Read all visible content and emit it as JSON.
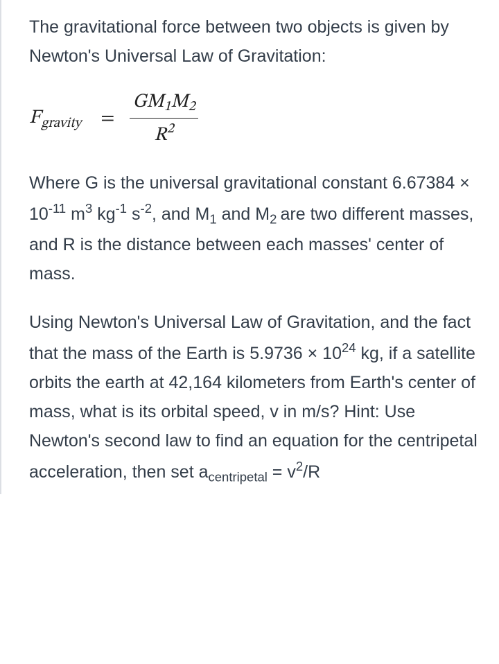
{
  "text_color": "#333d49",
  "background_color": "#ffffff",
  "border_color": "#dcdfe4",
  "body_fontsize": 25,
  "line_height": 1.68,
  "formula_fontsize": 28,
  "border_width": 2,
  "paragraphs": {
    "intro": "The gravitational force between two objects is given by Newton's Universal Law of Gravitation:"
  },
  "formula": {
    "lhs_symbol": "F",
    "lhs_subscript": "gravity",
    "equals": "=",
    "numerator": {
      "g": "G",
      "m1": "M",
      "m1_sub": "1",
      "m2": "M",
      "m2_sub": "2"
    },
    "denominator": {
      "r": "R",
      "exp": "2"
    }
  },
  "explain": {
    "t1": "Where G is the universal gravitational constant 6.67384 × 10",
    "exp1": "-11",
    "t2": " m",
    "exp2": "3",
    "t3": " kg",
    "exp3": "-1",
    "t4": " s",
    "exp4": "-2",
    "t5": ", and M",
    "sub1": "1",
    "t6": " and M",
    "sub2": "2 ",
    "t7": "are two different masses, and R is the distance between each masses' center of mass."
  },
  "question": {
    "t1": "Using Newton's Universal Law of Gravitation, and the fact that the mass of the Earth is 5.9736 × 10",
    "exp1": "24",
    "t2": " kg, if a satellite orbits the earth at 42,164 kilometers from Earth's center of mass, what is its orbital speed, v in m/s? Hint: Use Newton's second law to find an equation for the centripetal acceleration, then set a",
    "sub1": "centripetal",
    "t3": " = v",
    "exp2": "2",
    "t4": "/R"
  }
}
